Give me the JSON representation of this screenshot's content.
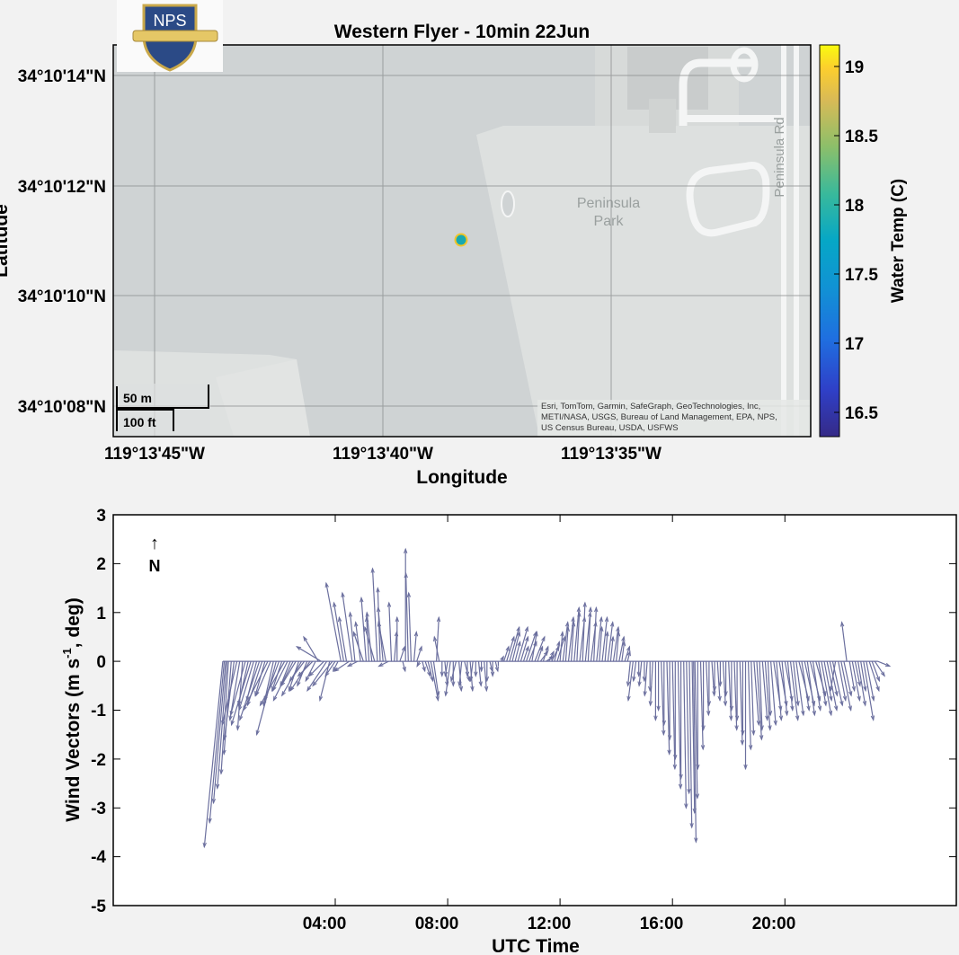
{
  "chart_data": [
    {
      "type": "scatter",
      "title": "Western Flyer - 10min 22Jun",
      "xlabel": "Longitude",
      "ylabel": "Latitude",
      "x_ticks": [
        "119°13'45\"W",
        "119°13'40\"W",
        "119°13'35\"W"
      ],
      "y_ticks": [
        "34°10'14\"N",
        "34°10'12\"N",
        "34°10'10\"N",
        "34°10'08\"N"
      ],
      "grid": true,
      "points": [
        {
          "lon": "119°13'38.3\"W",
          "lat": "34°10'11.0\"N",
          "water_temp_c": 18.0
        }
      ],
      "colorbar": {
        "label": "Water Temp (C)",
        "ticks": [
          "16.5",
          "17",
          "17.5",
          "18",
          "18.5",
          "19"
        ],
        "range": [
          16.3,
          19.15
        ],
        "colormap": "parula"
      },
      "basemap": {
        "labels": [
          "Peninsula",
          "Park",
          "Peninsula Rd"
        ],
        "scale_metric": "50 m",
        "scale_imperial": "100 ft",
        "attribution": [
          "Esri, TomTom, Garmin, SafeGraph, GeoTechnologies, Inc,",
          "METI/NASA, USGS, Bureau of Land Management, EPA, NPS,",
          "US Census Bureau, USDA, USFWS"
        ]
      },
      "logo_text": "NPS"
    },
    {
      "type": "line",
      "subtype": "wind-vector stick plot",
      "xlabel": "UTC Time",
      "ylabel_parts": [
        "Wind  Vectors  (m  s",
        "-1",
        ",  deg)"
      ],
      "x_ticks": [
        "04:00",
        "08:00",
        "12:00",
        "16:00",
        "20:00"
      ],
      "x_tick_hours": [
        4,
        8,
        12,
        16,
        20
      ],
      "xlim_hours": [
        -3.9,
        26.1
      ],
      "y_ticks": [
        "3",
        "2",
        "1",
        "0",
        "-1",
        "-2",
        "-3",
        "-4",
        "-5"
      ],
      "ylim": [
        -5,
        3
      ],
      "north_indicator": {
        "arrow": "↑",
        "label": "N"
      },
      "color": "#6b6f9e",
      "segments_note": "each vector: [utc_hour, u (m/s east), v (m/s north)]",
      "vectors": [
        [
          0.0,
          -0.38,
          -3.8
        ],
        [
          0.05,
          -0.3,
          -3.3
        ],
        [
          0.1,
          -0.25,
          -2.9
        ],
        [
          0.15,
          -0.2,
          -2.6
        ],
        [
          0.2,
          -0.15,
          -2.3
        ],
        [
          0.3,
          -0.15,
          -1.9
        ],
        [
          0.4,
          -0.2,
          -1.6
        ],
        [
          0.5,
          -0.3,
          -1.3
        ],
        [
          0.6,
          -0.2,
          -1.2
        ],
        [
          0.7,
          -0.1,
          -1.4
        ],
        [
          0.8,
          -0.3,
          -1.1
        ],
        [
          0.9,
          -0.2,
          -0.9
        ],
        [
          1.0,
          -0.4,
          -1.3
        ],
        [
          1.1,
          -0.3,
          -1.0
        ],
        [
          1.2,
          -0.2,
          -0.8
        ],
        [
          1.3,
          -0.4,
          -1.2
        ],
        [
          1.4,
          -0.3,
          -0.9
        ],
        [
          1.5,
          -0.2,
          -0.7
        ],
        [
          1.6,
          -0.5,
          -1.0
        ],
        [
          1.7,
          -0.3,
          -0.7
        ],
        [
          1.8,
          -0.2,
          -0.9
        ],
        [
          1.9,
          -0.4,
          -1.5
        ],
        [
          2.0,
          -0.3,
          -0.8
        ],
        [
          2.1,
          -0.2,
          -0.6
        ],
        [
          2.2,
          -0.5,
          -0.9
        ],
        [
          2.3,
          -0.3,
          -0.6
        ],
        [
          2.4,
          -0.2,
          -0.5
        ],
        [
          2.5,
          -0.4,
          -0.8
        ],
        [
          2.6,
          -0.3,
          -0.5
        ],
        [
          2.7,
          -0.2,
          -0.6
        ],
        [
          2.8,
          -0.4,
          -0.7
        ],
        [
          2.9,
          -0.3,
          -0.4
        ],
        [
          3.0,
          -0.2,
          -0.5
        ],
        [
          3.1,
          -0.4,
          -0.6
        ],
        [
          3.2,
          -0.3,
          -0.3
        ],
        [
          3.3,
          -0.2,
          -0.4
        ],
        [
          3.4,
          -0.3,
          0.5
        ],
        [
          3.5,
          -0.5,
          0.3
        ],
        [
          3.6,
          -0.3,
          -0.3
        ],
        [
          3.7,
          -0.4,
          -0.6
        ],
        [
          3.8,
          -0.2,
          -0.8
        ],
        [
          3.9,
          -0.4,
          -0.5
        ],
        [
          4.0,
          -0.2,
          -0.3
        ],
        [
          4.1,
          -0.1,
          -0.2
        ],
        [
          4.2,
          -0.3,
          1.6
        ],
        [
          4.3,
          -0.2,
          1.2
        ],
        [
          4.4,
          -0.15,
          0.9
        ],
        [
          4.5,
          -0.3,
          -0.2
        ],
        [
          4.6,
          -0.2,
          1.4
        ],
        [
          4.7,
          -0.1,
          1.0
        ],
        [
          4.8,
          -0.2,
          -0.1
        ],
        [
          4.9,
          -0.1,
          0.8
        ],
        [
          5.0,
          -0.2,
          0.6
        ],
        [
          5.1,
          -0.1,
          1.3
        ],
        [
          5.2,
          -0.05,
          0.9
        ],
        [
          5.3,
          -0.1,
          1.0
        ],
        [
          5.4,
          -0.2,
          0.7
        ],
        [
          5.5,
          -0.1,
          1.9
        ],
        [
          5.6,
          -0.05,
          1.5
        ],
        [
          5.7,
          -0.1,
          1.1
        ],
        [
          5.8,
          -0.15,
          0.8
        ],
        [
          5.9,
          -0.2,
          -0.1
        ],
        [
          6.0,
          -0.05,
          1.2
        ],
        [
          6.1,
          0.05,
          0.6
        ],
        [
          6.2,
          0.0,
          0.9
        ],
        [
          6.3,
          0.1,
          0.3
        ],
        [
          6.4,
          0.05,
          -0.2
        ],
        [
          6.5,
          0.0,
          2.3
        ],
        [
          6.6,
          -0.05,
          1.8
        ],
        [
          6.7,
          -0.05,
          1.4
        ],
        [
          6.8,
          0.05,
          0.6
        ],
        [
          6.9,
          0.1,
          0.3
        ],
        [
          7.0,
          -0.05,
          -0.1
        ],
        [
          7.1,
          0.05,
          -0.2
        ],
        [
          7.2,
          0.1,
          -0.3
        ],
        [
          7.3,
          0.1,
          -0.4
        ],
        [
          7.4,
          0.15,
          -0.8
        ],
        [
          7.5,
          0.1,
          -0.7
        ],
        [
          7.6,
          0.05,
          0.9
        ],
        [
          7.7,
          -0.1,
          0.5
        ],
        [
          7.8,
          0.0,
          -0.3
        ],
        [
          7.9,
          0.05,
          -0.5
        ],
        [
          8.0,
          -0.05,
          -0.3
        ],
        [
          8.1,
          -0.1,
          -0.7
        ],
        [
          8.2,
          0.0,
          -0.5
        ],
        [
          8.3,
          -0.1,
          -0.4
        ],
        [
          8.4,
          0.05,
          -0.6
        ],
        [
          8.5,
          -0.05,
          -0.5
        ],
        [
          8.6,
          0.1,
          -0.4
        ],
        [
          8.7,
          0.0,
          -0.3
        ],
        [
          8.8,
          0.05,
          -0.6
        ],
        [
          8.9,
          -0.05,
          -0.4
        ],
        [
          9.0,
          0.0,
          -0.3
        ],
        [
          9.1,
          0.05,
          -0.5
        ],
        [
          9.2,
          0.0,
          -0.2
        ],
        [
          9.3,
          0.05,
          -0.6
        ],
        [
          9.4,
          0.0,
          -0.4
        ],
        [
          9.5,
          0.05,
          -0.2
        ],
        [
          9.6,
          0.0,
          -0.3
        ],
        [
          9.7,
          0.05,
          -0.2
        ],
        [
          9.8,
          0.0,
          -0.1
        ],
        [
          9.9,
          0.05,
          0.1
        ],
        [
          10.0,
          0.1,
          0.3
        ],
        [
          10.1,
          0.15,
          0.5
        ],
        [
          10.2,
          0.2,
          0.7
        ],
        [
          10.3,
          0.15,
          0.6
        ],
        [
          10.4,
          0.1,
          0.4
        ],
        [
          10.5,
          0.2,
          0.7
        ],
        [
          10.6,
          0.15,
          0.5
        ],
        [
          10.7,
          0.1,
          0.3
        ],
        [
          10.8,
          0.2,
          0.6
        ],
        [
          10.9,
          0.15,
          0.4
        ],
        [
          11.0,
          0.1,
          0.6
        ],
        [
          11.1,
          0.2,
          0.5
        ],
        [
          11.2,
          0.1,
          0.3
        ],
        [
          11.3,
          0.15,
          0.2
        ],
        [
          11.4,
          0.1,
          0.3
        ],
        [
          11.5,
          0.15,
          0.1
        ],
        [
          11.6,
          0.1,
          0.2
        ],
        [
          11.7,
          0.15,
          0.3
        ],
        [
          11.8,
          0.1,
          0.4
        ],
        [
          11.9,
          0.15,
          0.5
        ],
        [
          12.0,
          0.05,
          0.6
        ],
        [
          12.1,
          0.1,
          0.8
        ],
        [
          12.2,
          0.05,
          0.7
        ],
        [
          12.3,
          0.1,
          0.9
        ],
        [
          12.4,
          0.05,
          0.8
        ],
        [
          12.5,
          0.1,
          1.1
        ],
        [
          12.6,
          0.05,
          1.0
        ],
        [
          12.7,
          0.1,
          0.9
        ],
        [
          12.8,
          0.05,
          1.2
        ],
        [
          12.9,
          0.1,
          1.0
        ],
        [
          13.0,
          0.05,
          1.1
        ],
        [
          13.1,
          0.1,
          0.8
        ],
        [
          13.2,
          0.05,
          1.1
        ],
        [
          13.3,
          0.1,
          0.9
        ],
        [
          13.4,
          0.05,
          0.7
        ],
        [
          13.5,
          0.1,
          0.9
        ],
        [
          13.6,
          0.05,
          0.6
        ],
        [
          13.7,
          0.1,
          0.8
        ],
        [
          13.8,
          0.05,
          0.5
        ],
        [
          13.9,
          0.1,
          0.7
        ],
        [
          14.0,
          0.05,
          0.6
        ],
        [
          14.1,
          0.1,
          0.5
        ],
        [
          14.2,
          0.05,
          0.4
        ],
        [
          14.3,
          0.1,
          0.3
        ],
        [
          14.4,
          0.05,
          0.2
        ],
        [
          14.5,
          -0.05,
          -0.5
        ],
        [
          14.6,
          -0.1,
          -0.8
        ],
        [
          14.7,
          -0.05,
          -0.4
        ],
        [
          14.8,
          0.0,
          -0.3
        ],
        [
          14.9,
          -0.05,
          -0.5
        ],
        [
          15.0,
          0.0,
          -0.4
        ],
        [
          15.1,
          -0.05,
          -0.7
        ],
        [
          15.2,
          0.0,
          -0.6
        ],
        [
          15.3,
          -0.05,
          -0.9
        ],
        [
          15.4,
          0.0,
          -1.2
        ],
        [
          15.5,
          0.0,
          -1.0
        ],
        [
          15.6,
          0.05,
          -1.5
        ],
        [
          15.7,
          0.0,
          -1.3
        ],
        [
          15.8,
          0.05,
          -1.9
        ],
        [
          15.9,
          0.0,
          -1.6
        ],
        [
          16.0,
          0.05,
          -2.2
        ],
        [
          16.1,
          0.0,
          -2.0
        ],
        [
          16.2,
          0.05,
          -2.6
        ],
        [
          16.3,
          0.0,
          -2.4
        ],
        [
          16.4,
          0.05,
          -3.0
        ],
        [
          16.5,
          0.05,
          -2.7
        ],
        [
          16.6,
          0.05,
          -3.4
        ],
        [
          16.7,
          0.05,
          -3.1
        ],
        [
          16.75,
          0.05,
          -3.7
        ],
        [
          16.8,
          0.05,
          -2.8
        ],
        [
          16.9,
          0.0,
          -2.2
        ],
        [
          17.0,
          0.05,
          -1.8
        ],
        [
          17.1,
          0.0,
          -1.4
        ],
        [
          17.2,
          0.05,
          -1.1
        ],
        [
          17.3,
          0.0,
          -0.9
        ],
        [
          17.4,
          0.05,
          -0.7
        ],
        [
          17.5,
          0.0,
          -0.6
        ],
        [
          17.6,
          0.05,
          -0.8
        ],
        [
          17.7,
          0.0,
          -0.5
        ],
        [
          17.8,
          0.05,
          -0.9
        ],
        [
          17.9,
          0.0,
          -0.7
        ],
        [
          18.0,
          0.05,
          -1.2
        ],
        [
          18.1,
          0.0,
          -1.0
        ],
        [
          18.2,
          0.05,
          -1.4
        ],
        [
          18.3,
          0.0,
          -1.2
        ],
        [
          18.4,
          0.05,
          -1.7
        ],
        [
          18.5,
          0.0,
          -1.5
        ],
        [
          18.6,
          0.0,
          -2.2
        ],
        [
          18.7,
          0.05,
          -1.8
        ],
        [
          18.8,
          0.05,
          -1.5
        ],
        [
          18.9,
          0.1,
          -1.3
        ],
        [
          19.0,
          0.1,
          -1.6
        ],
        [
          19.1,
          0.05,
          -1.4
        ],
        [
          19.2,
          0.1,
          -1.2
        ],
        [
          19.3,
          0.1,
          -1.4
        ],
        [
          19.4,
          0.05,
          -1.1
        ],
        [
          19.5,
          0.1,
          -1.3
        ],
        [
          19.6,
          0.15,
          -1.0
        ],
        [
          19.7,
          0.1,
          -1.2
        ],
        [
          19.8,
          0.15,
          -0.9
        ],
        [
          19.9,
          0.1,
          -1.1
        ],
        [
          20.0,
          0.15,
          -0.8
        ],
        [
          20.1,
          0.1,
          -1.0
        ],
        [
          20.2,
          0.15,
          -1.2
        ],
        [
          20.3,
          0.1,
          -0.9
        ],
        [
          20.4,
          0.15,
          -1.1
        ],
        [
          20.5,
          0.2,
          -0.8
        ],
        [
          20.6,
          0.15,
          -1.0
        ],
        [
          20.7,
          0.2,
          -0.9
        ],
        [
          20.8,
          0.15,
          -1.1
        ],
        [
          20.9,
          0.2,
          -0.8
        ],
        [
          21.0,
          0.15,
          -1.0
        ],
        [
          21.1,
          0.2,
          -0.7
        ],
        [
          21.2,
          0.15,
          -0.9
        ],
        [
          21.3,
          0.2,
          -1.1
        ],
        [
          21.4,
          0.15,
          -0.8
        ],
        [
          21.5,
          0.2,
          -1.0
        ],
        [
          21.6,
          0.15,
          -0.7
        ],
        [
          21.7,
          0.2,
          -0.9
        ],
        [
          21.8,
          -0.1,
          -0.6
        ],
        [
          21.9,
          0.15,
          -0.8
        ],
        [
          22.0,
          0.2,
          -1.0
        ],
        [
          22.1,
          0.15,
          -0.7
        ],
        [
          22.2,
          -0.1,
          0.8
        ],
        [
          22.3,
          0.1,
          -0.6
        ],
        [
          22.4,
          0.15,
          -0.8
        ],
        [
          22.5,
          0.1,
          -0.5
        ],
        [
          22.6,
          0.15,
          -0.9
        ],
        [
          22.7,
          0.1,
          -0.6
        ],
        [
          22.8,
          0.2,
          -1.2
        ],
        [
          22.9,
          0.15,
          -0.8
        ],
        [
          23.0,
          0.2,
          -0.6
        ],
        [
          23.1,
          0.15,
          -0.4
        ],
        [
          23.2,
          0.2,
          -0.3
        ],
        [
          23.3,
          0.25,
          -0.1
        ]
      ]
    }
  ]
}
